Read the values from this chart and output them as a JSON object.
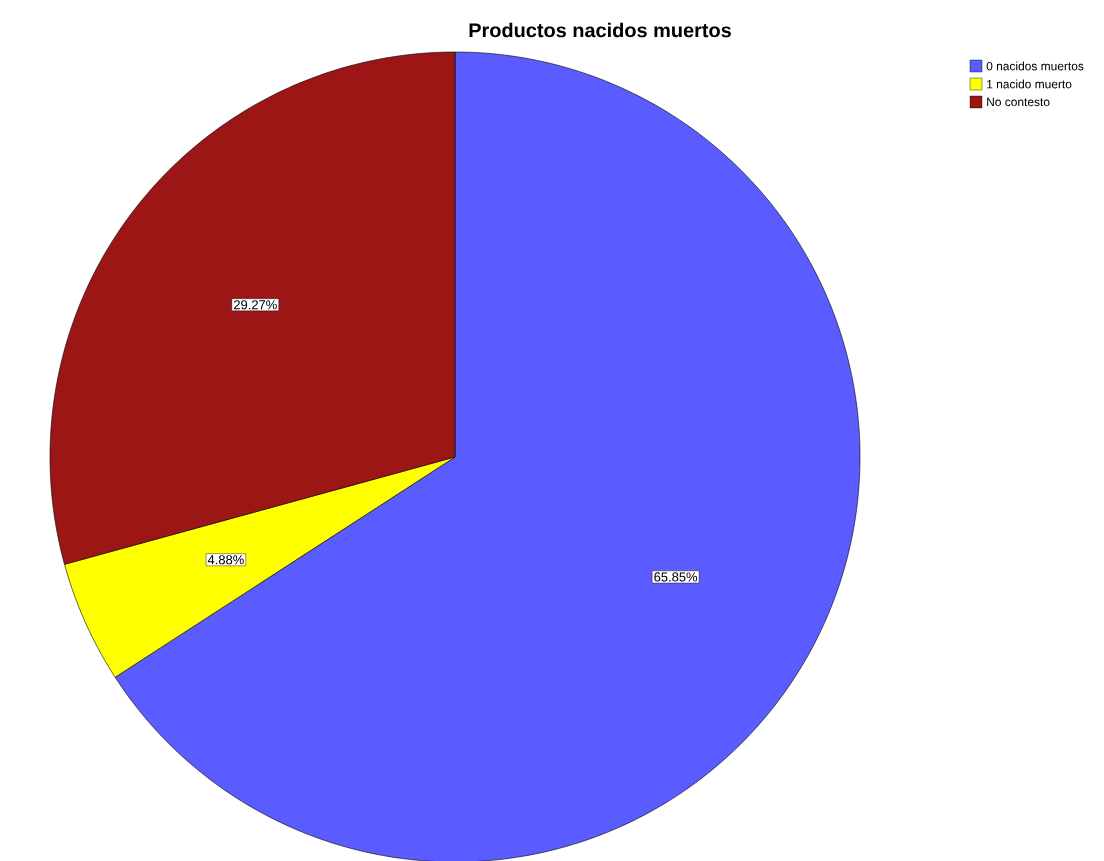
{
  "chart_data": {
    "type": "pie",
    "title": "Productos nacidos muertos",
    "categories": [
      "0 nacidos muertos",
      "1 nacido muerto",
      "No contesto"
    ],
    "values": [
      65.85,
      4.88,
      29.27
    ],
    "colors": [
      "#5a5cff",
      "#ffff00",
      "#9c1616"
    ],
    "value_labels": [
      "65.85%",
      "4.88%",
      "29.27%"
    ],
    "legend": "top right"
  }
}
